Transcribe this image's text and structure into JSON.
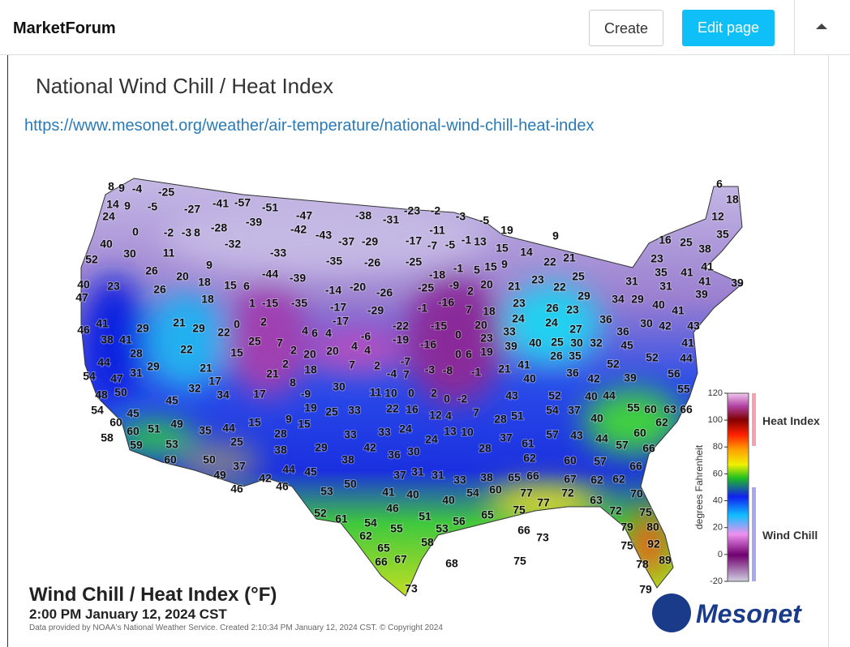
{
  "header": {
    "brand": "MarketForum",
    "buttons": [
      "Create",
      "Edit page"
    ]
  },
  "post": {
    "title": "National Wind Chill / Heat Index",
    "link": "https://www.mesonet.org/weather/air-temperature/national-wind-chill-heat-index"
  },
  "map": {
    "title": "Wind Chill / Heat Index (°F)",
    "time": "2:00 PM January 12, 2024 CST",
    "credit": "Data provided by NOAA's National Weather Service. Created 2:10:34 PM January 12, 2024 CST. © Copyright 2024",
    "logo": "Mesonet",
    "legend": {
      "ticks": [
        120,
        100,
        80,
        60,
        40,
        20,
        0,
        -20
      ],
      "axis_label": "degrees Fahrenheit",
      "heat_label": "Heat Index",
      "chill_label": "Wind Chill"
    },
    "readings": [
      8,
      -25,
      -41,
      -57,
      -51,
      -47,
      -38,
      -31,
      -23,
      -2,
      -3,
      -5,
      19,
      24,
      40,
      52,
      30,
      11,
      -32,
      -33,
      -35,
      -26,
      -25,
      -39,
      -42,
      -43,
      -37,
      -29,
      -17,
      -11,
      13,
      15,
      9,
      40,
      47,
      23,
      26,
      26,
      20,
      18,
      18,
      -44,
      -39,
      -14,
      -20,
      -26,
      -25,
      20,
      21,
      23,
      22,
      25,
      29,
      31,
      16,
      25,
      38,
      23,
      35,
      41,
      41,
      41,
      39,
      31,
      34,
      29,
      40,
      41,
      39,
      46,
      41,
      38,
      41,
      29,
      21,
      29,
      22,
      28,
      22,
      15,
      44,
      29,
      54,
      47,
      31,
      21,
      17,
      32,
      48,
      50,
      45,
      34,
      17,
      54,
      45,
      60,
      58,
      60,
      51,
      49,
      59,
      53,
      60,
      35,
      44,
      25,
      15,
      28,
      38,
      9,
      15,
      29,
      50,
      49,
      37,
      46,
      42,
      44,
      46,
      45,
      53,
      50,
      52,
      61,
      54,
      62,
      55,
      65,
      66,
      67,
      73,
      58,
      53,
      51,
      56,
      65,
      68,
      75,
      73,
      66,
      75,
      77,
      77,
      72,
      63,
      72,
      75,
      80,
      79,
      92,
      75,
      78,
      89,
      79,
      70,
      62,
      62,
      67,
      60,
      57,
      66,
      57,
      66,
      60,
      62,
      55,
      60,
      63,
      66,
      56,
      55,
      44,
      41,
      43,
      42,
      30,
      36,
      45,
      52,
      39,
      44,
      40,
      40,
      44,
      43,
      37,
      54,
      52,
      42,
      36,
      52,
      32,
      30,
      25,
      26,
      35,
      27,
      24,
      26,
      23,
      36,
      40,
      41,
      40,
      33,
      39,
      24,
      23,
      18,
      20,
      23,
      19,
      21,
      43,
      51,
      28,
      37,
      61,
      57,
      62,
      65,
      66,
      60,
      54,
      38,
      33,
      31,
      31,
      37,
      40,
      41,
      46,
      40,
      24,
      30,
      36,
      42,
      38,
      33,
      25,
      33,
      22,
      16,
      24,
      33,
      13,
      10,
      28,
      12,
      4,
      7,
      30,
      11,
      10,
      0,
      2,
      0,
      -2,
      8,
      -9,
      19,
      21,
      18,
      2,
      20,
      2,
      7,
      25,
      0,
      2,
      4,
      6,
      4,
      -6,
      4,
      4,
      20,
      7,
      2,
      -4,
      7,
      -7,
      -3,
      -8,
      -1,
      0,
      6,
      -16,
      -19,
      -22,
      -15,
      0,
      7,
      -1,
      -16,
      -9,
      2,
      -18,
      -1,
      5,
      15,
      9,
      -7,
      -5,
      -1,
      -29,
      -17,
      -17,
      -35,
      -15,
      1,
      6,
      15,
      9,
      -28,
      -3,
      8,
      -2,
      0,
      -27,
      -5,
      -4,
      9,
      14,
      9,
      6,
      18,
      12,
      35,
      14,
      22,
      21
    ]
  }
}
